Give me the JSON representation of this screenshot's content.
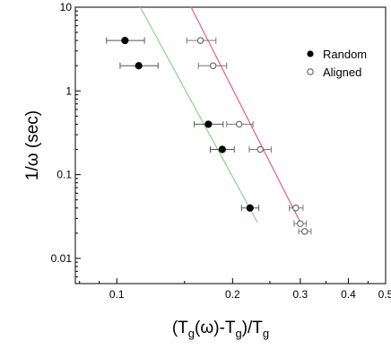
{
  "chart_data": {
    "type": "scatter",
    "title": "",
    "xlabel": "(T_g(ω)-T_g)/T_g",
    "ylabel": "1/ω (sec)",
    "xscale": "log",
    "yscale": "log",
    "xlim": [
      0.078,
      0.5
    ],
    "ylim": [
      0.005,
      10
    ],
    "x_ticks": [
      {
        "value": 0.1,
        "label": "0.1"
      },
      {
        "value": 0.2,
        "label": "0.2"
      },
      {
        "value": 0.3,
        "label": "0.3"
      },
      {
        "value": 0.4,
        "label": "0.4"
      },
      {
        "value": 0.5,
        "label": "0.5"
      }
    ],
    "y_ticks": [
      {
        "value": 0.01,
        "label": "0.01"
      },
      {
        "value": 0.1,
        "label": "0.1"
      },
      {
        "value": 1,
        "label": "1"
      },
      {
        "value": 10,
        "label": "10"
      }
    ],
    "grid": false,
    "legend_position": "top-right",
    "series": [
      {
        "name": "Random",
        "marker": "filled-circle",
        "color": "#000000",
        "points": [
          {
            "x": 0.105,
            "y": 4.0,
            "xerr": [
              0.094,
              0.118
            ]
          },
          {
            "x": 0.114,
            "y": 2.0,
            "xerr": [
              0.102,
              0.128
            ]
          },
          {
            "x": 0.173,
            "y": 0.4,
            "xerr": [
              0.159,
              0.189
            ]
          },
          {
            "x": 0.188,
            "y": 0.2,
            "xerr": [
              0.175,
              0.202
            ]
          },
          {
            "x": 0.222,
            "y": 0.04,
            "xerr": [
              0.211,
              0.234
            ]
          }
        ]
      },
      {
        "name": "Aligned",
        "marker": "open-circle",
        "color": "#555555",
        "points": [
          {
            "x": 0.165,
            "y": 4.0,
            "xerr": [
              0.152,
              0.181
            ]
          },
          {
            "x": 0.178,
            "y": 2.0,
            "xerr": [
              0.163,
              0.193
            ]
          },
          {
            "x": 0.208,
            "y": 0.4,
            "xerr": [
              0.193,
              0.226
            ]
          },
          {
            "x": 0.236,
            "y": 0.2,
            "xerr": [
              0.221,
              0.252
            ]
          },
          {
            "x": 0.292,
            "y": 0.04,
            "xerr": [
              0.281,
              0.305
            ]
          },
          {
            "x": 0.3,
            "y": 0.026,
            "xerr": [
              0.289,
              0.311
            ]
          },
          {
            "x": 0.308,
            "y": 0.021,
            "xerr": [
              0.297,
              0.32
            ]
          }
        ]
      }
    ],
    "fit_lines": [
      {
        "series": "Random",
        "color": "#8fd88f",
        "x": [
          0.115,
          0.232
        ],
        "y": [
          10.0,
          0.027
        ]
      },
      {
        "series": "Aligned",
        "color": "#e06a8a",
        "x": [
          0.156,
          0.3
        ],
        "y": [
          10.0,
          0.027
        ]
      }
    ]
  }
}
